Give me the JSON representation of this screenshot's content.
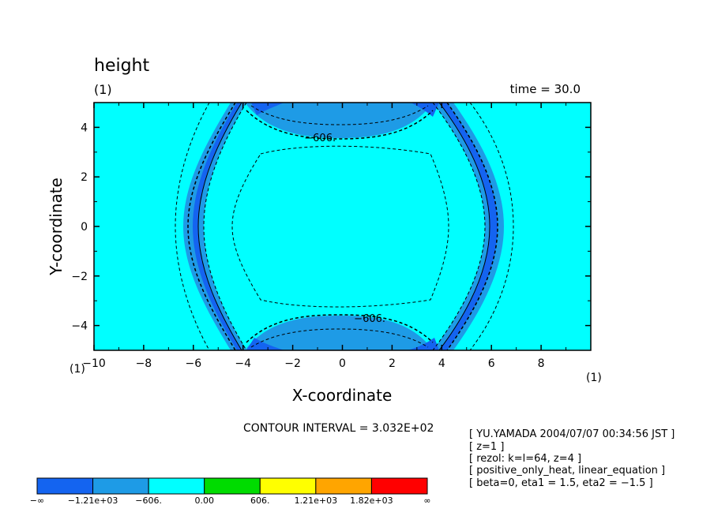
{
  "chart_data": {
    "type": "contour",
    "title": "height",
    "subtitle": "(1)",
    "time_label": "time = 30.0",
    "xlabel": "X-coordinate",
    "ylabel": "Y-coordinate",
    "x_unit": "(1)",
    "y_unit": "(1)",
    "xlim": [
      -10,
      10
    ],
    "ylim": [
      -5,
      5
    ],
    "xticks": [
      -10,
      -8,
      -6,
      -4,
      -2,
      0,
      2,
      4,
      6,
      8
    ],
    "xtick_labels": [
      "−10",
      "−8",
      "−6",
      "−4",
      "−2",
      "0",
      "2",
      "4",
      "6",
      "8"
    ],
    "yticks": [
      -4,
      -2,
      0,
      2,
      4
    ],
    "ytick_labels": [
      "−4",
      "−2",
      "0",
      "2",
      "4"
    ],
    "contour_interval_label": "CONTOUR INTERVAL = 3.032E+02",
    "contour_interval": 303.2,
    "contour_labels": [
      {
        "text": "−606.",
        "x": -0.9,
        "y": 3.6
      },
      {
        "text": "−606.",
        "x": 1.1,
        "y": -3.7
      }
    ],
    "colorbar": {
      "colors": [
        "#1464f0",
        "#1e9be6",
        "#00ffff",
        "#00dc00",
        "#ffff00",
        "#ffa500",
        "#ff0000"
      ],
      "labels": [
        "−∞",
        "−1.21e+03",
        "−606.",
        "0.00",
        "606.",
        "1.21e+03",
        "1.82e+03",
        "∞"
      ]
    },
    "background_color": "#00ffff"
  },
  "info_lines": [
    "[ YU.YAMADA 2004/07/07 00:34:56 JST ]",
    "[ z=1 ]",
    "[ rezol: k=l=64, z=4 ]",
    "[ positive_only_heat, linear_equation ]",
    "[ beta=0, eta1 = 1.5, eta2 = −1.5 ]"
  ]
}
